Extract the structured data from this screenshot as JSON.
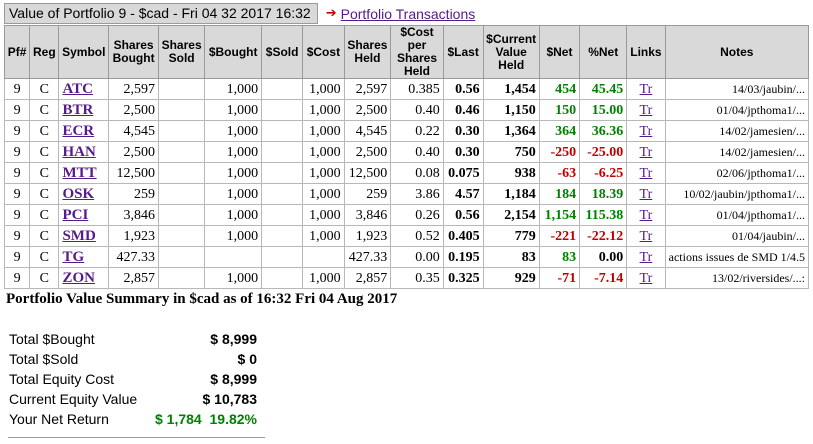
{
  "header": {
    "title": "Value of Portfolio 9 - $cad - Fri 04 32 2017 16:32",
    "arrow": "➔",
    "transactions_link": "Portfolio Transactions"
  },
  "columns": [
    "Pf#",
    "Reg",
    "Symbol",
    "Shares Bought",
    "Shares Sold",
    "$Bought",
    "$Sold",
    "$Cost",
    "Shares Held",
    "$Cost per Shares Held",
    "$Last",
    "$Current Value Held",
    "$Net",
    "%Net",
    "Links",
    "Notes"
  ],
  "rows": [
    {
      "pf": "9",
      "reg": "C",
      "symbol": "ATC",
      "bought_sh": "2,597",
      "sold_sh": "",
      "bought": "1,000",
      "sold": "",
      "cost": "1,000",
      "held": "2,597",
      "cost_per": "0.385",
      "last": "0.56",
      "value": "1,454",
      "net": "454",
      "pnet": "45.45",
      "link": "Tr",
      "notes": "14/03/jaubin/...",
      "sign": "pos"
    },
    {
      "pf": "9",
      "reg": "C",
      "symbol": "BTR",
      "bought_sh": "2,500",
      "sold_sh": "",
      "bought": "1,000",
      "sold": "",
      "cost": "1,000",
      "held": "2,500",
      "cost_per": "0.40",
      "last": "0.46",
      "value": "1,150",
      "net": "150",
      "pnet": "15.00",
      "link": "Tr",
      "notes": "01/04/jpthoma1/...",
      "sign": "pos"
    },
    {
      "pf": "9",
      "reg": "C",
      "symbol": "ECR",
      "bought_sh": "4,545",
      "sold_sh": "",
      "bought": "1,000",
      "sold": "",
      "cost": "1,000",
      "held": "4,545",
      "cost_per": "0.22",
      "last": "0.30",
      "value": "1,364",
      "net": "364",
      "pnet": "36.36",
      "link": "Tr",
      "notes": "14/02/jamesien/...",
      "sign": "pos"
    },
    {
      "pf": "9",
      "reg": "C",
      "symbol": "HAN",
      "bought_sh": "2,500",
      "sold_sh": "",
      "bought": "1,000",
      "sold": "",
      "cost": "1,000",
      "held": "2,500",
      "cost_per": "0.40",
      "last": "0.30",
      "value": "750",
      "net": "-250",
      "pnet": "-25.00",
      "link": "Tr",
      "notes": "14/02/jamesien/...",
      "sign": "neg"
    },
    {
      "pf": "9",
      "reg": "C",
      "symbol": "MTT",
      "bought_sh": "12,500",
      "sold_sh": "",
      "bought": "1,000",
      "sold": "",
      "cost": "1,000",
      "held": "12,500",
      "cost_per": "0.08",
      "last": "0.075",
      "value": "938",
      "net": "-63",
      "pnet": "-6.25",
      "link": "Tr",
      "notes": "02/06/jpthoma1/...",
      "sign": "neg"
    },
    {
      "pf": "9",
      "reg": "C",
      "symbol": "OSK",
      "bought_sh": "259",
      "sold_sh": "",
      "bought": "1,000",
      "sold": "",
      "cost": "1,000",
      "held": "259",
      "cost_per": "3.86",
      "last": "4.57",
      "value": "1,184",
      "net": "184",
      "pnet": "18.39",
      "link": "Tr",
      "notes": "10/02/jaubin/jpthoma1/...",
      "sign": "pos"
    },
    {
      "pf": "9",
      "reg": "C",
      "symbol": "PCI",
      "bought_sh": "3,846",
      "sold_sh": "",
      "bought": "1,000",
      "sold": "",
      "cost": "1,000",
      "held": "3,846",
      "cost_per": "0.26",
      "last": "0.56",
      "value": "2,154",
      "net": "1,154",
      "pnet": "115.38",
      "link": "Tr",
      "notes": "01/04/jpthoma1/...",
      "sign": "pos"
    },
    {
      "pf": "9",
      "reg": "C",
      "symbol": "SMD",
      "bought_sh": "1,923",
      "sold_sh": "",
      "bought": "1,000",
      "sold": "",
      "cost": "1,000",
      "held": "1,923",
      "cost_per": "0.52",
      "last": "0.405",
      "value": "779",
      "net": "-221",
      "pnet": "-22.12",
      "link": "Tr",
      "notes": "01/04/jaubin/...",
      "sign": "neg"
    },
    {
      "pf": "9",
      "reg": "C",
      "symbol": "TG",
      "bought_sh": "427.33",
      "sold_sh": "",
      "bought": "",
      "sold": "",
      "cost": "",
      "held": "427.33",
      "cost_per": "0.00",
      "last": "0.195",
      "value": "83",
      "net": "83",
      "pnet": "0.00",
      "link": "Tr",
      "notes": "actions issues de SMD 1/4.5",
      "sign": "pos"
    },
    {
      "pf": "9",
      "reg": "C",
      "symbol": "ZON",
      "bought_sh": "2,857",
      "sold_sh": "",
      "bought": "1,000",
      "sold": "",
      "cost": "1,000",
      "held": "2,857",
      "cost_per": "0.35",
      "last": "0.325",
      "value": "929",
      "net": "-71",
      "pnet": "-7.14",
      "link": "Tr",
      "notes": "13/02/riversides/...:",
      "sign": "neg"
    }
  ],
  "summary": {
    "title": "Portfolio Value Summary in $cad as of 16:32 Fri 04 Aug 2017",
    "items": [
      {
        "label": "Total $Bought",
        "value": "$ 8,999"
      },
      {
        "label": "Total $Sold",
        "value": "$ 0"
      },
      {
        "label": "Total Equity Cost",
        "value": "$ 8,999"
      },
      {
        "label": "Current Equity Value",
        "value": "$ 10,783"
      }
    ],
    "net_label": "Your Net Return",
    "net_value": "$ 1,784",
    "net_pct": "19.82%"
  }
}
